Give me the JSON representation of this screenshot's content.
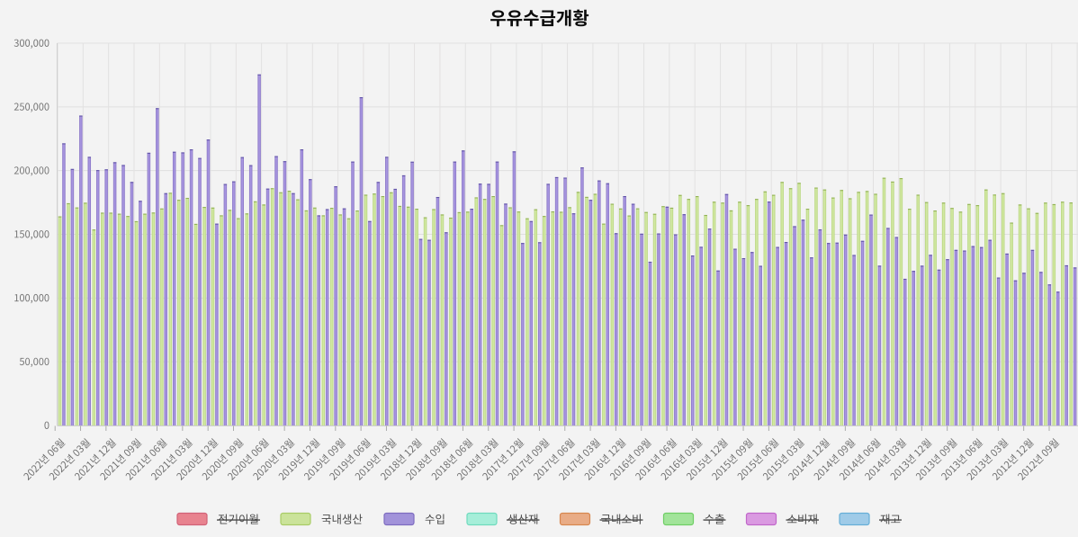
{
  "page": {
    "background": "#f3f3f3"
  },
  "chart_data": {
    "type": "bar",
    "title": "우유수급개황",
    "categories": [
      "2022년 06월",
      "2022년 05월",
      "2022년 04월",
      "2022년 03월",
      "2022년 02월",
      "2022년 01월",
      "2021년 12월",
      "2021년 11월",
      "2021년 10월",
      "2021년 09월",
      "2021년 08월",
      "2021년 07월",
      "2021년 06월",
      "2021년 05월",
      "2021년 04월",
      "2021년 03월",
      "2021년 02월",
      "2021년 01월",
      "2020년 12월",
      "2020년 11월",
      "2020년 10월",
      "2020년 09월",
      "2020년 08월",
      "2020년 07월",
      "2020년 06월",
      "2020년 05월",
      "2020년 04월",
      "2020년 03월",
      "2020년 02월",
      "2020년 01월",
      "2019년 12월",
      "2019년 11월",
      "2019년 10월",
      "2019년 09월",
      "2019년 08월",
      "2019년 07월",
      "2019년 06월",
      "2019년 05월",
      "2019년 04월",
      "2019년 03월",
      "2019년 02월",
      "2019년 01월",
      "2018년 12월",
      "2018년 11월",
      "2018년 10월",
      "2018년 09월",
      "2018년 08월",
      "2018년 07월",
      "2018년 06월",
      "2018년 05월",
      "2018년 04월",
      "2018년 03월",
      "2018년 02월",
      "2018년 01월",
      "2017년 12월",
      "2017년 11월",
      "2017년 10월",
      "2017년 09월",
      "2017년 08월",
      "2017년 07월",
      "2017년 06월",
      "2017년 05월",
      "2017년 04월",
      "2017년 03월",
      "2017년 02월",
      "2017년 01월",
      "2016년 12월",
      "2016년 11월",
      "2016년 10월",
      "2016년 09월",
      "2016년 08월",
      "2016년 07월",
      "2016년 06월",
      "2016년 05월",
      "2016년 04월",
      "2016년 03월",
      "2016년 02월",
      "2016년 01월",
      "2015년 12월",
      "2015년 11월",
      "2015년 10월",
      "2015년 09월",
      "2015년 08월",
      "2015년 07월",
      "2015년 06월",
      "2015년 05월",
      "2015년 04월",
      "2015년 03월",
      "2015년 02월",
      "2015년 01월",
      "2014년 12월",
      "2014년 11월",
      "2014년 10월",
      "2014년 09월",
      "2014년 08월",
      "2014년 07월",
      "2014년 06월",
      "2014년 05월",
      "2014년 04월",
      "2014년 03월",
      "2014년 02월",
      "2014년 01월",
      "2013년 12월",
      "2013년 11월",
      "2013년 10월",
      "2013년 09월",
      "2013년 08월",
      "2013년 07월",
      "2013년 06월",
      "2013년 05월",
      "2013년 04월",
      "2013년 03월",
      "2013년 02월",
      "2013년 01월",
      "2012년 12월",
      "2012년 11월",
      "2012년 10월",
      "2012년 09월",
      "2012년 08월",
      "2012년 07월"
    ],
    "x_tick_every": 3,
    "series": [
      {
        "name": "국내생산",
        "color": "#cbe39a",
        "border": "#a9cc66",
        "values": [
          164100,
          174400,
          171100,
          174800,
          153800,
          167000,
          167000,
          166200,
          164400,
          160300,
          166200,
          167100,
          170300,
          182600,
          177100,
          178600,
          158200,
          171500,
          171000,
          164900,
          169200,
          162700,
          166400,
          175900,
          173400,
          186200,
          183000,
          184200,
          177500,
          168800,
          171000,
          164900,
          170800,
          165600,
          162600,
          168700,
          181100,
          182000,
          180000,
          183000,
          172300,
          171700,
          170100,
          163400,
          169800,
          165600,
          163100,
          167400,
          167800,
          179000,
          177800,
          180000,
          157200,
          171200,
          167900,
          162600,
          169700,
          164400,
          168000,
          167700,
          171300,
          183300,
          179400,
          181800,
          158400,
          174000,
          170300,
          164800,
          170400,
          167500,
          166100,
          172100,
          170900,
          180900,
          177800,
          180000,
          165200,
          175600,
          174900,
          168800,
          175600,
          172900,
          177800,
          183700,
          181000,
          191100,
          186200,
          190400,
          170100,
          186700,
          185200,
          178900,
          184800,
          178300,
          183300,
          184000,
          181800,
          194400,
          191400,
          194100,
          170100,
          181100,
          175300,
          168700,
          174900,
          170700,
          167800,
          173800,
          172900,
          185200,
          181200,
          182300,
          159200,
          173400,
          170400,
          166800,
          174900,
          173700,
          175600,
          175000
        ]
      },
      {
        "name": "수입",
        "color": "#a293da",
        "border": "#7e6cc0",
        "values": [
          221400,
          201300,
          243200,
          210800,
          200400,
          201000,
          206600,
          204400,
          191100,
          176300,
          214000,
          249000,
          182300,
          214800,
          214300,
          216700,
          209900,
          224400,
          158400,
          189500,
          191600,
          210600,
          204300,
          275500,
          185900,
          211400,
          207400,
          182300,
          216700,
          193300,
          164900,
          169800,
          187700,
          170400,
          207100,
          257600,
          160400,
          191100,
          210800,
          185700,
          196300,
          207000,
          146400,
          145700,
          179300,
          151600,
          207100,
          215800,
          170100,
          189800,
          189600,
          207100,
          174100,
          215100,
          143200,
          160400,
          143800,
          189600,
          194900,
          194500,
          166500,
          202500,
          177100,
          192300,
          190100,
          150900,
          180000,
          174000,
          150500,
          128500,
          150700,
          171700,
          150000,
          165800,
          133400,
          140200,
          154500,
          121600,
          181600,
          138700,
          131300,
          136100,
          125300,
          175700,
          140100,
          144000,
          156400,
          161500,
          131900,
          153900,
          143200,
          143500,
          149800,
          133800,
          144900,
          165500,
          125400,
          155000,
          147900,
          115100,
          121300,
          125400,
          133900,
          122300,
          130500,
          137800,
          137300,
          140800,
          140000,
          145700,
          116100,
          134900,
          113900,
          119800,
          137800,
          120500,
          110700,
          105000,
          125700,
          124000
        ]
      }
    ],
    "ylim": [
      0,
      300000
    ],
    "y_tick_step": 50000,
    "y_tick_labels": [
      "0",
      "50,000",
      "100,000",
      "150,000",
      "200,000",
      "250,000",
      "300,000"
    ],
    "grid": true,
    "legend_position": "bottom"
  },
  "legend": {
    "items": [
      {
        "label": "전기이월",
        "color": "#e8838f",
        "border": "#d16277",
        "disabled": true
      },
      {
        "label": "국내생산",
        "color": "#cbe39a",
        "border": "#a9cc66",
        "disabled": false
      },
      {
        "label": "수입",
        "color": "#a293da",
        "border": "#7e6cc0",
        "disabled": false
      },
      {
        "label": "생산재",
        "color": "#a6eed9",
        "border": "#6fdabd",
        "disabled": true
      },
      {
        "label": "국내소비",
        "color": "#e9ac86",
        "border": "#d8874f",
        "disabled": true
      },
      {
        "label": "수출",
        "color": "#a2e49a",
        "border": "#6fce65",
        "disabled": true
      },
      {
        "label": "소비재",
        "color": "#da9ae1",
        "border": "#c167ca",
        "disabled": true
      },
      {
        "label": "재고",
        "color": "#9fcbe8",
        "border": "#66aed7",
        "disabled": true
      }
    ]
  }
}
